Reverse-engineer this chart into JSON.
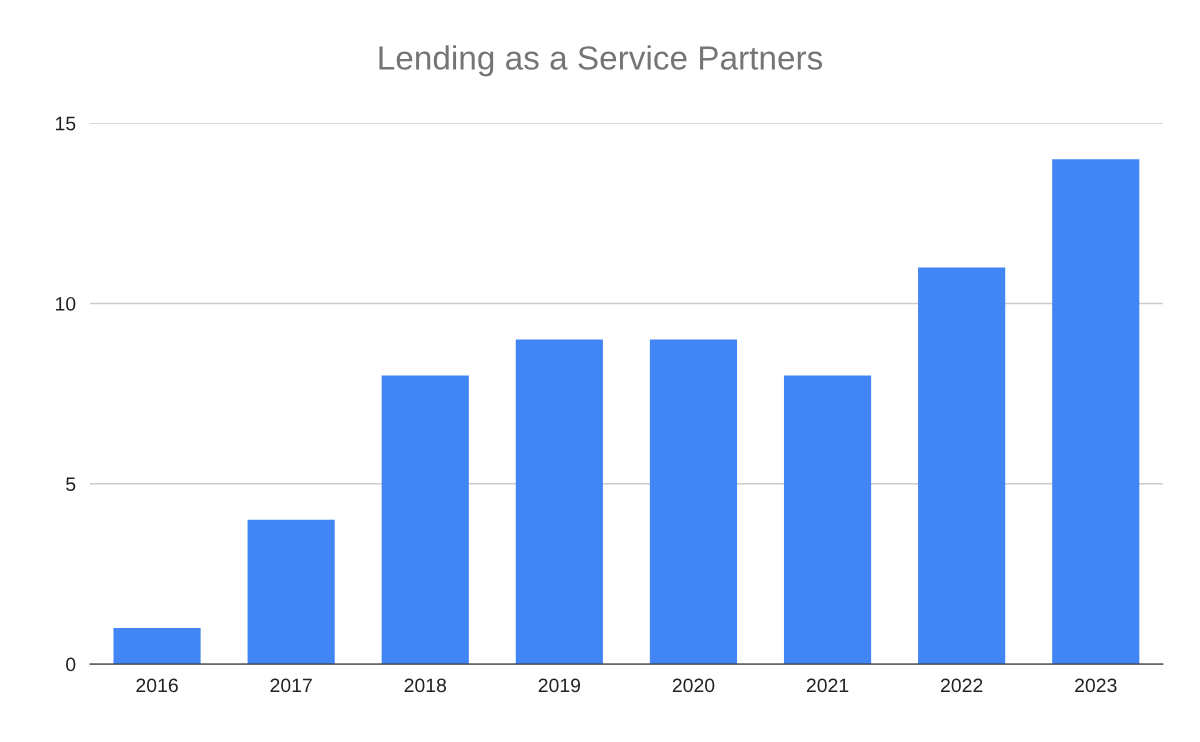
{
  "chart_data": {
    "type": "bar",
    "title": "Lending as a Service Partners",
    "categories": [
      "2016",
      "2017",
      "2018",
      "2019",
      "2020",
      "2021",
      "2022",
      "2023"
    ],
    "values": [
      1,
      4,
      8,
      9,
      9,
      8,
      11,
      14
    ],
    "color": "#4285f4",
    "ylim": [
      0,
      15
    ],
    "yticks": [
      0,
      5,
      10,
      15
    ],
    "grid": "y"
  }
}
